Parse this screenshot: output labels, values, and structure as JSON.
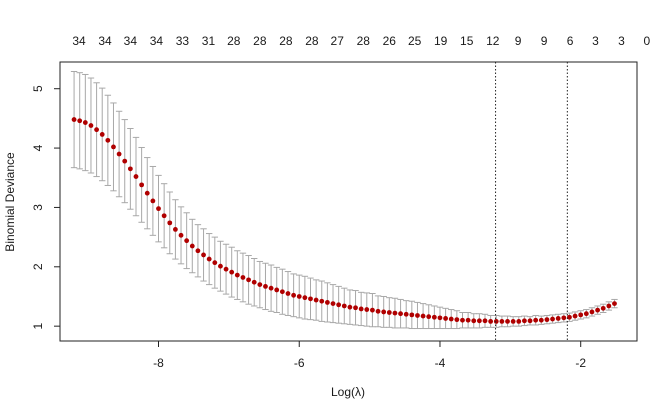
{
  "chart_data": {
    "type": "scatter",
    "title": "",
    "xlabel": "Log(λ)",
    "ylabel": "Binomial Deviance",
    "xlim": [
      -9.4,
      -1.2
    ],
    "ylim": [
      0.75,
      5.45
    ],
    "x_ticks": [
      -8,
      -6,
      -4,
      -2
    ],
    "y_ticks": [
      1,
      2,
      3,
      4,
      5
    ],
    "top_labels": [
      "34",
      "34",
      "34",
      "34",
      "33",
      "31",
      "28",
      "28",
      "28",
      "28",
      "27",
      "28",
      "26",
      "25",
      "19",
      "15",
      "12",
      "9",
      "9",
      "6",
      "3",
      "3",
      "0"
    ],
    "top_label_x": [
      -9.13,
      -8.76,
      -8.4,
      -8.03,
      -7.66,
      -7.29,
      -6.93,
      -6.56,
      -6.19,
      -5.82,
      -5.46,
      -5.09,
      -4.72,
      -4.36,
      -3.99,
      -3.62,
      -3.25,
      -2.89,
      -2.52,
      -2.15,
      -1.79,
      -1.42,
      -1.06
    ],
    "vlines": [
      -3.21,
      -2.19
    ],
    "point_color": "#b00000",
    "errorbar_color": "#a8a8a8",
    "line_style": "dotted",
    "series": [
      {
        "x": [
          -9.2,
          -9.12,
          -9.04,
          -8.96,
          -8.88,
          -8.8,
          -8.72,
          -8.64,
          -8.56,
          -8.48,
          -8.4,
          -8.32,
          -8.24,
          -8.16,
          -8.08,
          -8.0,
          -7.92,
          -7.84,
          -7.76,
          -7.68,
          -7.6,
          -7.52,
          -7.44,
          -7.36,
          -7.28,
          -7.2,
          -7.12,
          -7.04,
          -6.96,
          -6.88,
          -6.8,
          -6.72,
          -6.64,
          -6.56,
          -6.48,
          -6.4,
          -6.32,
          -6.24,
          -6.16,
          -6.08,
          -6.0,
          -5.92,
          -5.84,
          -5.76,
          -5.68,
          -5.6,
          -5.52,
          -5.44,
          -5.36,
          -5.28,
          -5.2,
          -5.12,
          -5.04,
          -4.96,
          -4.88,
          -4.8,
          -4.72,
          -4.64,
          -4.56,
          -4.48,
          -4.4,
          -4.32,
          -4.24,
          -4.16,
          -4.08,
          -4.0,
          -3.92,
          -3.84,
          -3.76,
          -3.68,
          -3.6,
          -3.52,
          -3.44,
          -3.36,
          -3.28,
          -3.2,
          -3.12,
          -3.04,
          -2.96,
          -2.88,
          -2.8,
          -2.72,
          -2.64,
          -2.56,
          -2.48,
          -2.4,
          -2.32,
          -2.24,
          -2.16,
          -2.08,
          -2.0,
          -1.92,
          -1.84,
          -1.76,
          -1.68,
          -1.6,
          -1.52
        ],
        "y": [
          4.48,
          4.46,
          4.43,
          4.38,
          4.31,
          4.23,
          4.13,
          4.02,
          3.9,
          3.78,
          3.65,
          3.52,
          3.38,
          3.24,
          3.11,
          2.98,
          2.86,
          2.74,
          2.63,
          2.53,
          2.44,
          2.35,
          2.27,
          2.2,
          2.13,
          2.07,
          2.01,
          1.96,
          1.91,
          1.86,
          1.82,
          1.78,
          1.74,
          1.7,
          1.67,
          1.64,
          1.61,
          1.58,
          1.55,
          1.52,
          1.5,
          1.48,
          1.46,
          1.44,
          1.42,
          1.4,
          1.38,
          1.36,
          1.34,
          1.32,
          1.31,
          1.29,
          1.28,
          1.27,
          1.25,
          1.24,
          1.23,
          1.22,
          1.21,
          1.2,
          1.19,
          1.18,
          1.17,
          1.16,
          1.15,
          1.14,
          1.13,
          1.12,
          1.11,
          1.1,
          1.1,
          1.09,
          1.09,
          1.09,
          1.08,
          1.08,
          1.08,
          1.08,
          1.08,
          1.08,
          1.09,
          1.09,
          1.1,
          1.1,
          1.11,
          1.12,
          1.13,
          1.14,
          1.15,
          1.17,
          1.19,
          1.21,
          1.24,
          1.27,
          1.3,
          1.34,
          1.38
        ],
        "lower": [
          3.67,
          3.65,
          3.62,
          3.58,
          3.52,
          3.45,
          3.37,
          3.28,
          3.18,
          3.08,
          2.97,
          2.86,
          2.75,
          2.64,
          2.53,
          2.42,
          2.32,
          2.22,
          2.13,
          2.05,
          1.97,
          1.9,
          1.83,
          1.76,
          1.7,
          1.64,
          1.59,
          1.54,
          1.49,
          1.45,
          1.41,
          1.37,
          1.34,
          1.31,
          1.28,
          1.25,
          1.23,
          1.2,
          1.18,
          1.16,
          1.14,
          1.12,
          1.11,
          1.1,
          1.08,
          1.07,
          1.06,
          1.05,
          1.04,
          1.03,
          1.02,
          1.01,
          1.0,
          0.99,
          0.99,
          0.98,
          0.98,
          0.97,
          0.97,
          0.97,
          0.96,
          0.96,
          0.96,
          0.96,
          0.96,
          0.96,
          0.96,
          0.96,
          0.96,
          0.97,
          0.97,
          0.97,
          0.97,
          0.98,
          0.98,
          0.98,
          0.99,
          0.99,
          1.0,
          1.0,
          1.01,
          1.02,
          1.02,
          1.03,
          1.04,
          1.05,
          1.06,
          1.07,
          1.08,
          1.1,
          1.12,
          1.14,
          1.17,
          1.2,
          1.23,
          1.27,
          1.31
        ],
        "upper": [
          5.29,
          5.27,
          5.24,
          5.18,
          5.1,
          5.01,
          4.89,
          4.76,
          4.62,
          4.48,
          4.33,
          4.18,
          4.01,
          3.84,
          3.69,
          3.54,
          3.4,
          3.26,
          3.13,
          3.01,
          2.91,
          2.8,
          2.71,
          2.64,
          2.56,
          2.5,
          2.43,
          2.38,
          2.33,
          2.27,
          2.23,
          2.19,
          2.14,
          2.09,
          2.06,
          2.03,
          1.99,
          1.96,
          1.92,
          1.88,
          1.86,
          1.84,
          1.81,
          1.78,
          1.76,
          1.73,
          1.7,
          1.67,
          1.64,
          1.61,
          1.6,
          1.57,
          1.56,
          1.55,
          1.51,
          1.5,
          1.48,
          1.47,
          1.45,
          1.43,
          1.42,
          1.4,
          1.38,
          1.36,
          1.34,
          1.32,
          1.3,
          1.28,
          1.26,
          1.23,
          1.23,
          1.21,
          1.21,
          1.2,
          1.18,
          1.18,
          1.17,
          1.17,
          1.16,
          1.16,
          1.17,
          1.16,
          1.18,
          1.17,
          1.18,
          1.19,
          1.2,
          1.21,
          1.22,
          1.24,
          1.26,
          1.28,
          1.31,
          1.34,
          1.37,
          1.41,
          1.45
        ]
      }
    ]
  }
}
